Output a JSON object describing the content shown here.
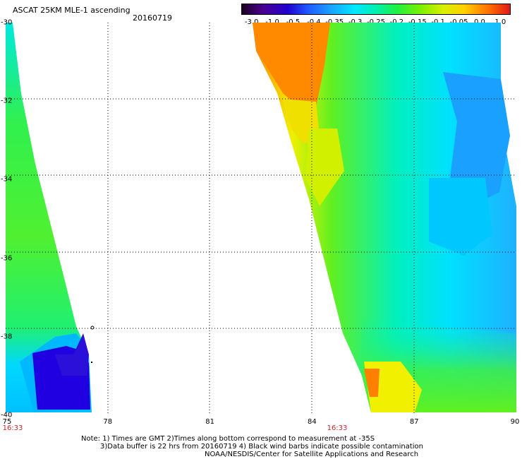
{
  "header": {
    "title": "ASCAT 25KM MLE-1 ascending",
    "date": "20160719"
  },
  "colorbar": {
    "labels": [
      "-3.0",
      "-1.0",
      "-0.5",
      "-0.4",
      "-0.35",
      "-0.3",
      "-0.25",
      "-0.2",
      "-0.15",
      "-0.1",
      "-0.05",
      "0.0",
      "1.0"
    ],
    "colors": [
      "#2a0040",
      "#5a00a0",
      "#2400d8",
      "#1e5cff",
      "#1aa0ff",
      "#00e8ff",
      "#00f0b0",
      "#20f040",
      "#a0f000",
      "#f0f000",
      "#ffa000",
      "#ff6000",
      "#e82010"
    ]
  },
  "axes": {
    "x_labels": [
      "75",
      "78",
      "81",
      "84",
      "87",
      "90"
    ],
    "y_labels": [
      "-30",
      "-32",
      "-34",
      "-36",
      "-38",
      "-40"
    ],
    "times": [
      "16:33",
      "16:33"
    ]
  },
  "footer": {
    "note_line1": "Note: 1) Times are GMT 2)Times along bottom correspond to measurement at -35S",
    "note_line2": "3)Data buffer is 22 hrs from 20160719 4) Black wind barbs indicate possible contamination",
    "credit": "NOAA/NESDIS/Center for Satellite Applications and Research"
  }
}
